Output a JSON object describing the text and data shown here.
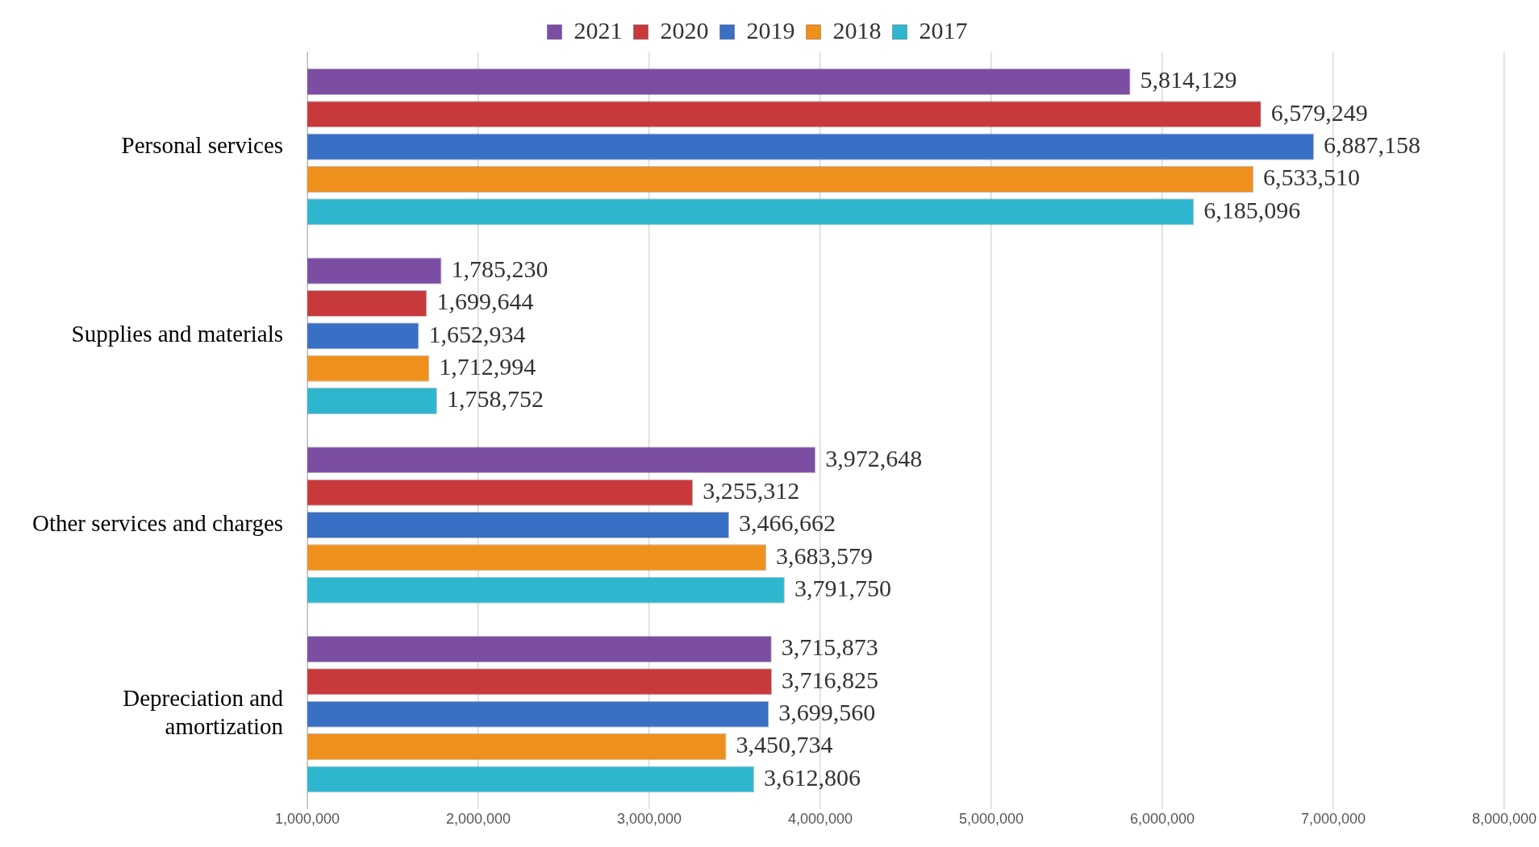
{
  "chart_data": {
    "type": "bar",
    "orientation": "horizontal",
    "categories": [
      "Personal services",
      "Supplies and materials",
      "Other services and charges",
      "Depreciation and amortization"
    ],
    "series": [
      {
        "name": "2021",
        "color": "#7b4ea3",
        "values": [
          5814129,
          1785230,
          3972648,
          3715873
        ],
        "value_labels": [
          "5,814,129",
          "1,785,230",
          "3,972,648",
          "3,715,873"
        ]
      },
      {
        "name": "2020",
        "color": "#c8393c",
        "values": [
          6579249,
          1699644,
          3255312,
          3716825
        ],
        "value_labels": [
          "6,579,249",
          "1,699,644",
          "3,255,312",
          "3,716,825"
        ]
      },
      {
        "name": "2019",
        "color": "#3a6fc6",
        "values": [
          6887158,
          1652934,
          3466662,
          3699560
        ],
        "value_labels": [
          "6,887,158",
          "1,652,934",
          "3,466,662",
          "3,699,560"
        ]
      },
      {
        "name": "2018",
        "color": "#f0901c",
        "values": [
          6533510,
          1712994,
          3683579,
          3450734
        ],
        "value_labels": [
          "6,533,510",
          "1,712,994",
          "3,683,579",
          "3,450,734"
        ]
      },
      {
        "name": "2017",
        "color": "#2eb6cf",
        "values": [
          6185096,
          1758752,
          3791750,
          3612806
        ],
        "value_labels": [
          "6,185,096",
          "1,758,752",
          "3,791,750",
          "3,612,806"
        ]
      }
    ],
    "xlim": [
      1000000,
      8000000
    ],
    "xticks": [
      {
        "value": 1000000,
        "label": "1,000,000"
      },
      {
        "value": 2000000,
        "label": "2,000,000"
      },
      {
        "value": 3000000,
        "label": "3,000,000"
      },
      {
        "value": 4000000,
        "label": "4,000,000"
      },
      {
        "value": 5000000,
        "label": "5,000,000"
      },
      {
        "value": 6000000,
        "label": "6,000,000"
      },
      {
        "value": 7000000,
        "label": "7,000,000"
      },
      {
        "value": 8000000,
        "label": "8,000,000"
      }
    ],
    "grid": "x",
    "legend": "top"
  }
}
